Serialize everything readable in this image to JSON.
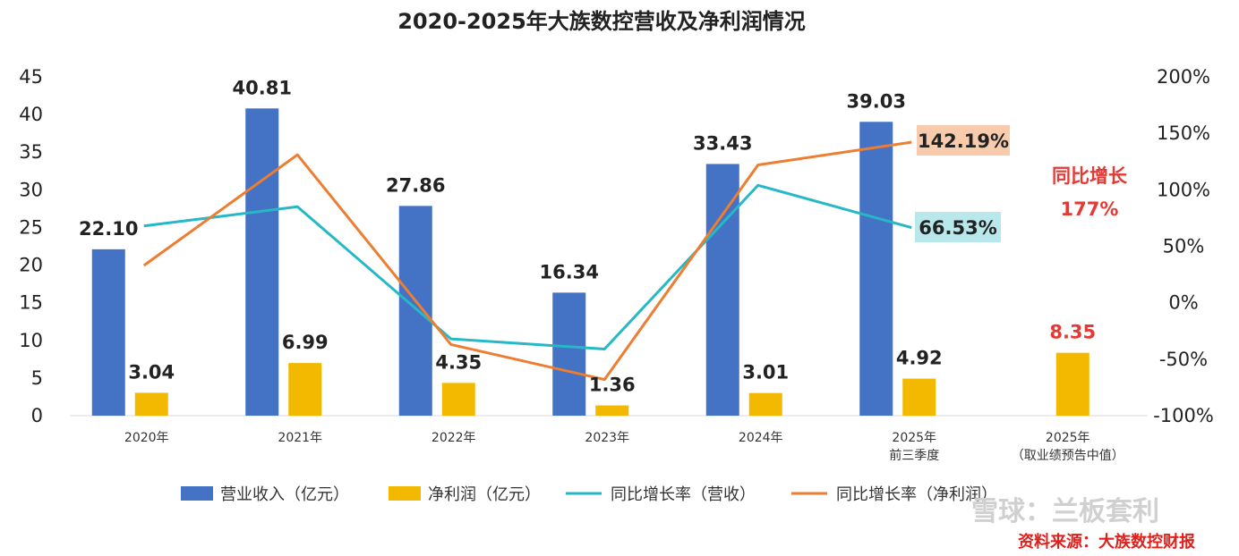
{
  "chart_data": {
    "type": "bar",
    "title": "2020-2025年大族数控营收及净利润情况",
    "categories": [
      [
        "2020年"
      ],
      [
        "2021年"
      ],
      [
        "2022年"
      ],
      [
        "2023年"
      ],
      [
        "2024年"
      ],
      [
        "2025年",
        "前三季度"
      ],
      [
        "2025年",
        "（取业绩预告中值）"
      ]
    ],
    "series": [
      {
        "name": "营业收入（亿元）",
        "kind": "bar",
        "axis": "left",
        "color": "#4472c4",
        "values": [
          22.1,
          40.81,
          27.86,
          16.34,
          33.43,
          39.03,
          null
        ],
        "labels": [
          "22.10",
          "40.81",
          "27.86",
          "16.34",
          "33.43",
          "39.03",
          null
        ]
      },
      {
        "name": "净利润（亿元）",
        "kind": "bar",
        "axis": "left",
        "color": "#f2b900",
        "values": [
          3.04,
          6.99,
          4.35,
          1.36,
          3.01,
          4.92,
          8.35
        ],
        "labels": [
          "3.04",
          "6.99",
          "4.35",
          "1.36",
          "3.01",
          "4.92",
          "8.35"
        ]
      },
      {
        "name": "同比增长率（营收）",
        "kind": "line",
        "axis": "right",
        "color": "#26b8c6",
        "values": [
          68,
          85,
          -32,
          -41,
          104,
          66.53,
          null
        ]
      },
      {
        "name": "同比增长率（净利润）",
        "kind": "line",
        "axis": "right",
        "color": "#ed7d31",
        "values": [
          33,
          131,
          -37,
          -68,
          122,
          142.19,
          null
        ]
      }
    ],
    "ylim_left": [
      0,
      45
    ],
    "yticks_left": [
      "0",
      "5",
      "10",
      "15",
      "20",
      "25",
      "30",
      "35",
      "40",
      "45"
    ],
    "ylim_right": [
      -100,
      200
    ],
    "yticks_right": [
      "-100%",
      "-50%",
      "0%",
      "50%",
      "100%",
      "150%",
      "200%"
    ],
    "callouts": {
      "profit_growth": "142.19%",
      "revenue_growth": "66.53%",
      "forecast_title": "同比增长",
      "forecast_value": "177%"
    },
    "colors": {
      "callout_profit_bg": "#f8cbad",
      "callout_revenue_bg": "#b8e8ec",
      "highlight_red": "#e53935"
    },
    "legend_position": "bottom"
  },
  "footer": {
    "source": "资料来源：大族数控财报",
    "watermark": "雪球：兰板套利"
  }
}
